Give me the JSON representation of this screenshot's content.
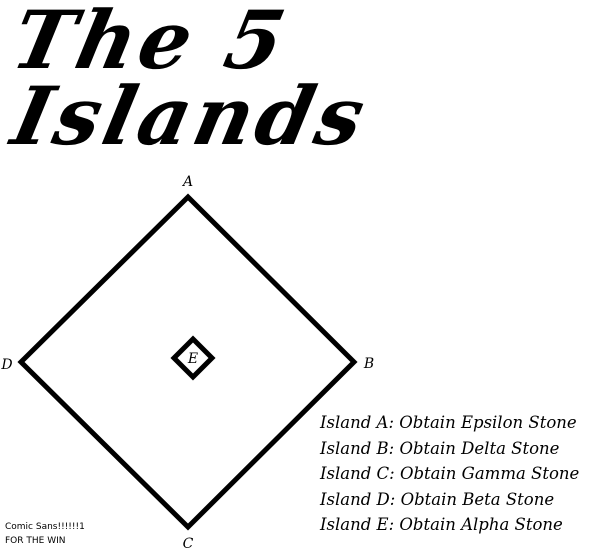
{
  "title": {
    "line1": "The 5",
    "line2": "Islands"
  },
  "islands": [
    {
      "id": "A",
      "label": "A"
    },
    {
      "id": "B",
      "label": "B"
    },
    {
      "id": "C",
      "label": "C"
    },
    {
      "id": "D",
      "label": "D"
    },
    {
      "id": "E",
      "label": "E"
    }
  ],
  "legend": [
    "Island A: Obtain Epsilon Stone",
    "Island B: Obtain Delta Stone",
    "Island C: Obtain Gamma Stone",
    "Island D: Obtain Beta Stone",
    "Island E: Obtain Alpha Stone"
  ],
  "note": {
    "line1": "Comic Sans!!!!!!1",
    "line2": "FOR THE WIN"
  },
  "colors": {
    "ink": "#000000",
    "background": "#ffffff"
  }
}
